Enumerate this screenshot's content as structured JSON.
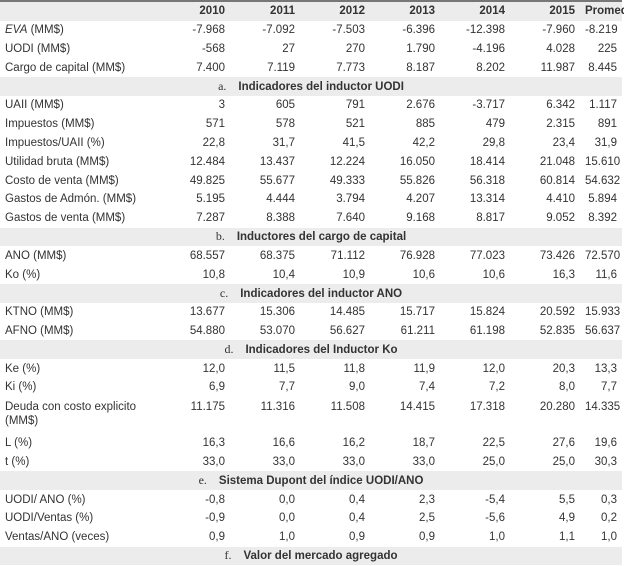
{
  "header": {
    "label": "",
    "years": [
      "2010",
      "2011",
      "2012",
      "2013",
      "2014",
      "2015",
      "Promedio"
    ]
  },
  "groups": [
    {
      "rows": [
        {
          "label": "EVA",
          "unit": " (MM$)",
          "italic": true,
          "values": [
            "-7.968",
            "-7.092",
            "-7.503",
            "-6.396",
            "-12.398",
            "-7.960",
            "-8.219"
          ]
        },
        {
          "label": "UODI (MM$)",
          "values": [
            "-568",
            "27",
            "270",
            "1.790",
            "-4.196",
            "4.028",
            "225"
          ]
        },
        {
          "label": "Cargo de capital (MM$)",
          "values": [
            "7.400",
            "7.119",
            "7.773",
            "8.187",
            "8.202",
            "11.987",
            "8.445"
          ]
        }
      ]
    },
    {
      "letter": "a.",
      "title": "Indicadores del inductor UODI",
      "rows": [
        {
          "label": "UAII (MM$)",
          "values": [
            "3",
            "605",
            "791",
            "2.676",
            "-3.717",
            "6.342",
            "1.117"
          ]
        },
        {
          "label": "Impuestos (MM$)",
          "values": [
            "571",
            "578",
            "521",
            "885",
            "479",
            "2.315",
            "891"
          ]
        },
        {
          "label": "Impuestos/UAII (%)",
          "values": [
            "22,8",
            "31,7",
            "41,5",
            "42,2",
            "29,8",
            "23,4",
            "31,9"
          ]
        },
        {
          "label": "Utilidad bruta (MM$)",
          "values": [
            "12.484",
            "13.437",
            "12.224",
            "16.050",
            "18.414",
            "21.048",
            "15.610"
          ]
        },
        {
          "label": "Costo de venta (MM$)",
          "values": [
            "49.825",
            "55.677",
            "49.333",
            "55.826",
            "56.318",
            "60.814",
            "54.632"
          ]
        },
        {
          "label": "Gastos de Admón. (MM$)",
          "values": [
            "5.195",
            "4.444",
            "3.794",
            "4.207",
            "13.314",
            "4.410",
            "5.894"
          ]
        },
        {
          "label": "Gastos de venta (MM$)",
          "values": [
            "7.287",
            "8.388",
            "7.640",
            "9.168",
            "8.817",
            "9.052",
            "8.392"
          ]
        }
      ]
    },
    {
      "letter": "b.",
      "title": "Inductores del cargo de capital",
      "rows": [
        {
          "label": "ANO (MM$)",
          "values": [
            "68.557",
            "68.375",
            "71.112",
            "76.928",
            "77.023",
            "73.426",
            "72.570"
          ]
        },
        {
          "label": "Ko (%)",
          "values": [
            "10,8",
            "10,4",
            "10,9",
            "10,6",
            "10,6",
            "16,3",
            "11,6"
          ]
        }
      ]
    },
    {
      "letter": "c.",
      "title": "Indicadores del inductor ANO",
      "rows": [
        {
          "label": "KTNO (MM$)",
          "values": [
            "13.677",
            "15.306",
            "14.485",
            "15.717",
            "15.824",
            "20.592",
            "15.933"
          ]
        },
        {
          "label": "AFNO (MM$)",
          "values": [
            "54.880",
            "53.070",
            "56.627",
            "61.211",
            "61.198",
            "52.835",
            "56.637"
          ]
        }
      ]
    },
    {
      "letter": "d.",
      "title": "Indicadores del Inductor Ko",
      "rows": [
        {
          "label": "Ke (%)",
          "values": [
            "12,0",
            "11,5",
            "11,8",
            "11,9",
            "12,0",
            "20,3",
            "13,3"
          ]
        },
        {
          "label": "Ki (%)",
          "values": [
            "6,9",
            "7,7",
            "9,0",
            "7,4",
            "7,2",
            "8,0",
            "7,7"
          ]
        },
        {
          "label": "Deuda con costo explicito (MM$)",
          "values": [
            "11.175",
            "11.316",
            "11.508",
            "14.415",
            "17.318",
            "20.280",
            "14.335"
          ]
        },
        {
          "label": "L (%)",
          "values": [
            "16,3",
            "16,6",
            "16,2",
            "18,7",
            "22,5",
            "27,6",
            "19,6"
          ]
        },
        {
          "label": "t (%)",
          "values": [
            "33,0",
            "33,0",
            "33,0",
            "33,0",
            "25,0",
            "25,0",
            "30,3"
          ]
        }
      ]
    },
    {
      "letter": "e.",
      "title": "Sistema Dupont del índice UODI/ANO",
      "rows": [
        {
          "label": "UODI/ ANO (%)",
          "values": [
            "-0,8",
            "0,0",
            "0,4",
            "2,3",
            "-5,4",
            "5,5",
            "0,3"
          ]
        },
        {
          "label": "UODI/Ventas (%)",
          "values": [
            "-0,9",
            "0,0",
            "0,4",
            "2,5",
            "-5,6",
            "4,9",
            "0,2"
          ]
        },
        {
          "label": "Ventas/ANO (veces)",
          "values": [
            "0,9",
            "1,0",
            "0,9",
            "0,9",
            "1,0",
            "1,1",
            "1,0"
          ]
        }
      ]
    },
    {
      "letter": "f.",
      "title": "Valor del mercado agregado",
      "rows": []
    }
  ]
}
